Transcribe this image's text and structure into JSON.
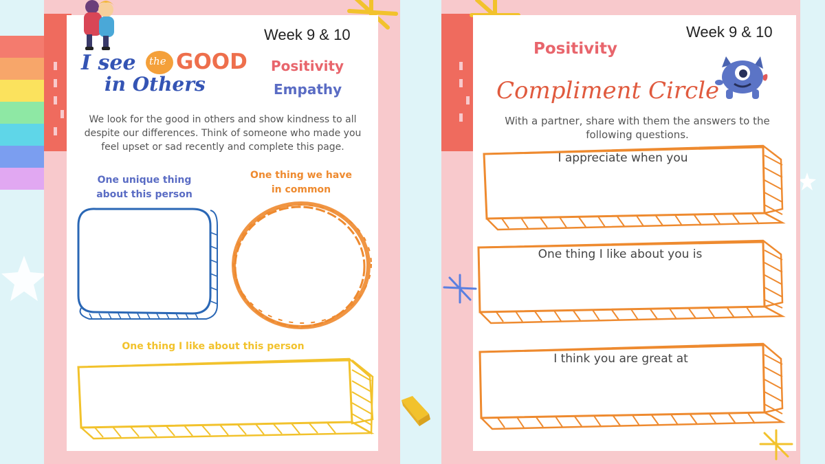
{
  "colors": {
    "background": "#dff4f8",
    "frame_pink": "#f8c9cc",
    "coral": "#ef6b5e",
    "positivity": "#e8656c",
    "empathy": "#5a6cc4",
    "orange": "#ee8a2f",
    "blue_outline": "#2a67b5",
    "yellow": "#f2c22c",
    "rainbow": [
      "#f47b6e",
      "#f7a66a",
      "#fbe25d",
      "#8ee8a4",
      "#5fd6e8",
      "#7b9ef0",
      "#e1a8f2"
    ]
  },
  "left_page": {
    "week": "Week 9 & 10",
    "title": {
      "line1_before": "I see",
      "line1_the": "the",
      "line1_after": "GOOD",
      "line2": "in Others"
    },
    "value_1": "Positivity",
    "value_2": "Empathy",
    "intro": [
      "We look for the good in others and show kindness to all",
      "despite our differences. Think of someone who made you",
      "feel upset or sad recently and complete this page."
    ],
    "prompt_unique": [
      "One unique thing",
      "about this person"
    ],
    "prompt_common": [
      "One thing we have",
      "in common"
    ],
    "prompt_like": "One thing I like about this person",
    "illustration_icon": "children-hugging-icon"
  },
  "right_page": {
    "week": "Week 9 & 10",
    "value": "Positivity",
    "title": "Compliment Circle",
    "instructions": [
      "With a partner, share with them the answers to the",
      "following questions."
    ],
    "boxes": [
      "I appreciate when you",
      "One thing I like about you is",
      "I think you are great at"
    ],
    "illustration_icon": "purple-monster-icon"
  }
}
